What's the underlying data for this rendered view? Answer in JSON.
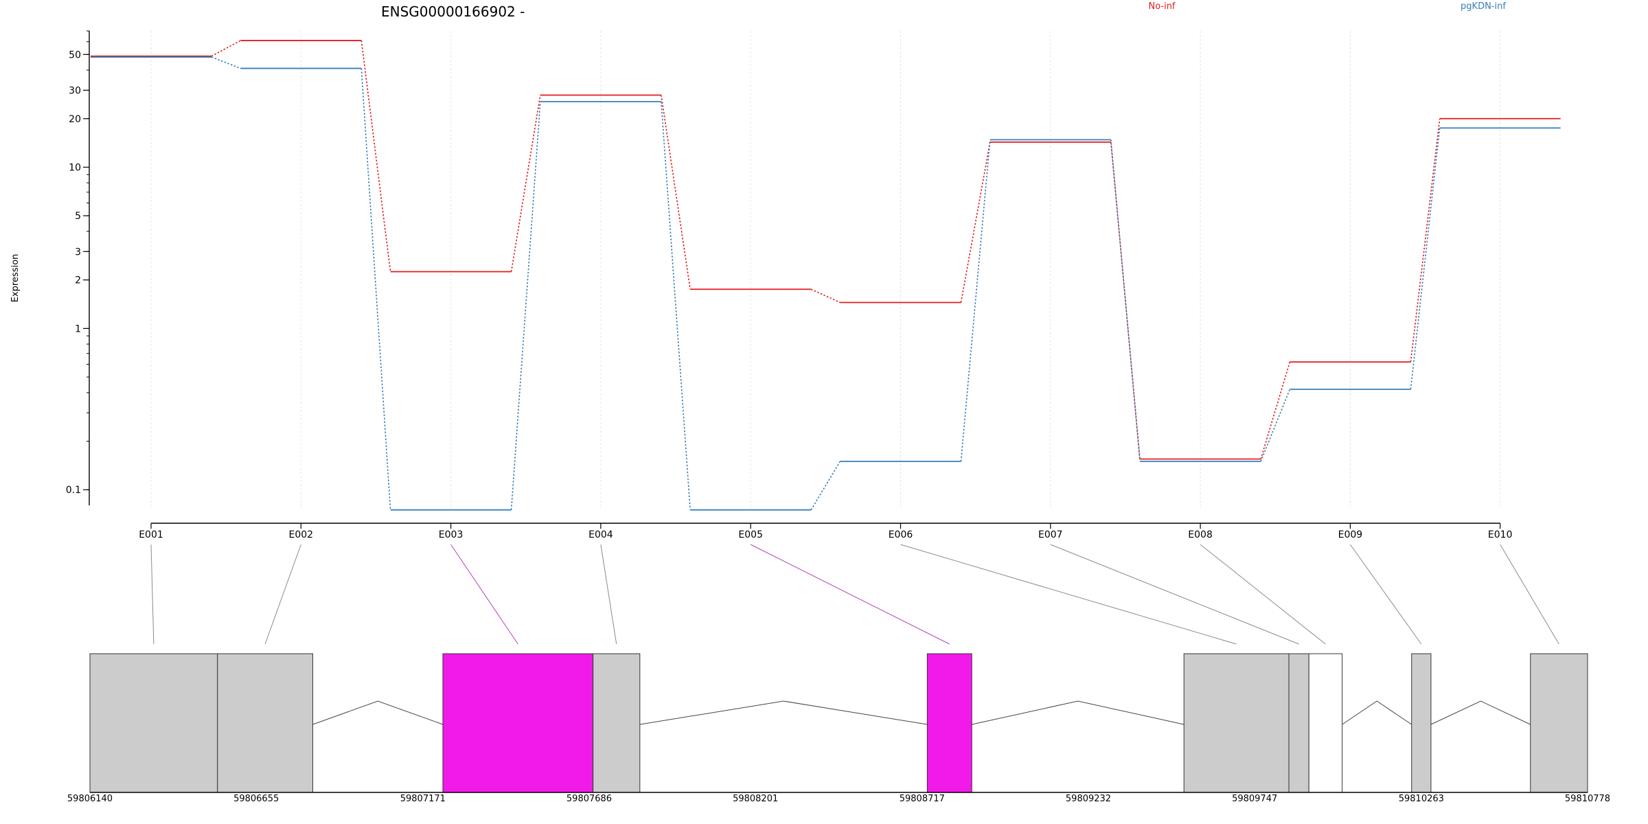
{
  "chart_data": {
    "type": "line",
    "title": "ENSG00000166902 -",
    "ylabel": "Expression",
    "y_scale": "log",
    "ylim": [
      0.08,
      70
    ],
    "y_ticks": [
      {
        "v": 0.1,
        "label": "0.1"
      },
      {
        "v": 1,
        "label": "1"
      },
      {
        "v": 2,
        "label": "2"
      },
      {
        "v": 3,
        "label": "3"
      },
      {
        "v": 5,
        "label": "5"
      },
      {
        "v": 10,
        "label": "10"
      },
      {
        "v": 20,
        "label": "20"
      },
      {
        "v": 30,
        "label": "30"
      },
      {
        "v": 50,
        "label": "50"
      }
    ],
    "categories": [
      "E001",
      "E002",
      "E003",
      "E004",
      "E005",
      "E006",
      "E007",
      "E008",
      "E009",
      "E010"
    ],
    "series": [
      {
        "name": "No-inf",
        "color": "#e41a1c",
        "values": [
          48.8,
          61,
          2.25,
          28,
          1.75,
          1.45,
          14.3,
          0.155,
          0.62,
          20
        ]
      },
      {
        "name": "pgKDN-inf",
        "color": "#377eb8",
        "values": [
          48.2,
          41,
          0.075,
          25.5,
          0.075,
          0.15,
          14.8,
          0.15,
          0.42,
          17.5
        ]
      }
    ],
    "legend_position": "top",
    "gene_model": {
      "coord_ticks": [
        "59806140",
        "59806655",
        "59807171",
        "59807686",
        "59808201",
        "59808717",
        "59809232",
        "59809747",
        "59810263",
        "59810778"
      ],
      "coord_range": [
        59806140,
        59810778
      ],
      "exons": [
        {
          "id": "E001",
          "start": 59806140,
          "end": 59806535,
          "color": "#cccccc"
        },
        {
          "id": "E002",
          "start": 59806535,
          "end": 59806830,
          "color": "#cccccc"
        },
        {
          "id": "E003",
          "start": 59807233,
          "end": 59807698,
          "color": "#f21ae8"
        },
        {
          "id": "E004",
          "start": 59807698,
          "end": 59807843,
          "color": "#cccccc"
        },
        {
          "id": "E005",
          "start": 59808733,
          "end": 59808871,
          "color": "#f21ae8"
        },
        {
          "id": "E006",
          "start": 59809528,
          "end": 59809853,
          "color": "#cccccc"
        },
        {
          "id": "E007",
          "start": 59809853,
          "end": 59809915,
          "color": "#cccccc"
        },
        {
          "id": "E008",
          "start": 59809915,
          "end": 59810018,
          "color": "#ffffff"
        },
        {
          "id": "E009",
          "start": 59810233,
          "end": 59810293,
          "color": "#cccccc"
        },
        {
          "id": "E010",
          "start": 59810601,
          "end": 59810778,
          "color": "#cccccc"
        }
      ]
    }
  }
}
